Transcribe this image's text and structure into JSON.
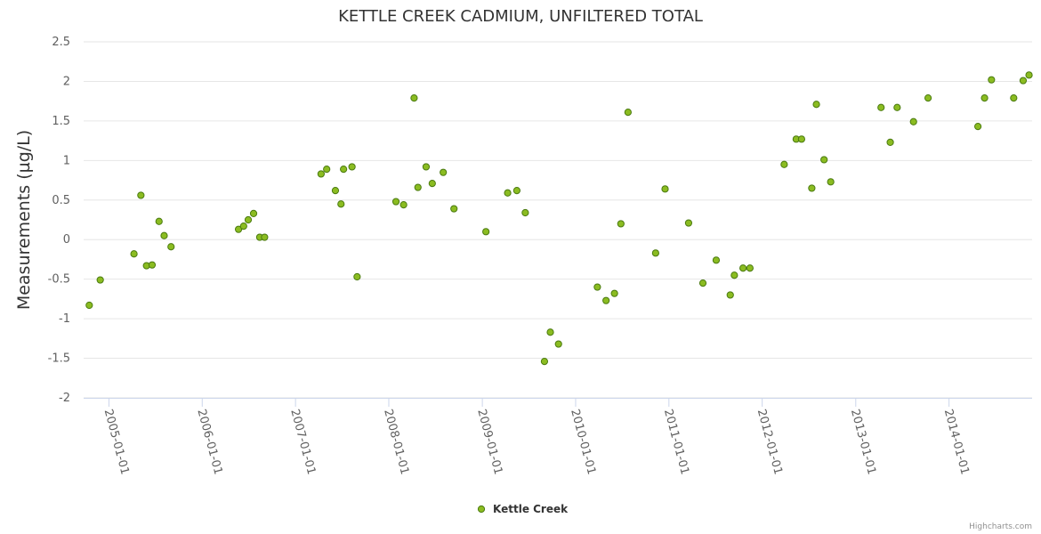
{
  "chart_data": {
    "type": "scatter",
    "title": "KETTLE CREEK CADMIUM, UNFILTERED TOTAL",
    "xlabel": "",
    "ylabel": "Measurements (µg/L)",
    "ylim": [
      -2,
      2.5
    ],
    "yticks": [
      "-2",
      "-1.5",
      "-1",
      "-0.5",
      "0",
      "0.5",
      "1",
      "1.5",
      "2",
      "2.5"
    ],
    "ytick_values": [
      -2,
      -1.5,
      -1,
      -0.5,
      0,
      0.5,
      1,
      1.5,
      2,
      2.5
    ],
    "xlim": [
      "2004-09-24",
      "2014-11-22"
    ],
    "xticks": [
      "2005-01-01",
      "2006-01-01",
      "2007-01-01",
      "2008-01-01",
      "2009-01-01",
      "2010-01-01",
      "2011-01-01",
      "2012-01-01",
      "2013-01-01",
      "2014-01-01"
    ],
    "grid": true,
    "legend": "bottom-center",
    "series": [
      {
        "name": "Kettle Creek",
        "color": "#8bbc21",
        "border_color": "#4a7a10",
        "points": [
          {
            "x": "2004-10-16",
            "y": -0.83
          },
          {
            "x": "2004-11-28",
            "y": -0.51
          },
          {
            "x": "2005-04-09",
            "y": -0.18
          },
          {
            "x": "2005-05-06",
            "y": 0.56
          },
          {
            "x": "2005-05-28",
            "y": -0.33
          },
          {
            "x": "2005-06-19",
            "y": -0.32
          },
          {
            "x": "2005-07-16",
            "y": 0.23
          },
          {
            "x": "2005-08-05",
            "y": 0.05
          },
          {
            "x": "2005-09-01",
            "y": -0.09
          },
          {
            "x": "2006-05-23",
            "y": 0.13
          },
          {
            "x": "2006-06-12",
            "y": 0.17
          },
          {
            "x": "2006-06-30",
            "y": 0.25
          },
          {
            "x": "2006-07-21",
            "y": 0.33
          },
          {
            "x": "2006-08-14",
            "y": 0.03
          },
          {
            "x": "2006-09-02",
            "y": 0.03
          },
          {
            "x": "2007-04-11",
            "y": 0.83
          },
          {
            "x": "2007-05-03",
            "y": 0.89
          },
          {
            "x": "2007-06-06",
            "y": 0.62
          },
          {
            "x": "2007-06-28",
            "y": 0.45
          },
          {
            "x": "2007-07-08",
            "y": 0.89
          },
          {
            "x": "2007-08-10",
            "y": 0.92
          },
          {
            "x": "2007-08-30",
            "y": -0.47
          },
          {
            "x": "2008-01-29",
            "y": 0.48
          },
          {
            "x": "2008-02-28",
            "y": 0.44
          },
          {
            "x": "2008-04-09",
            "y": 1.79
          },
          {
            "x": "2008-04-24",
            "y": 0.66
          },
          {
            "x": "2008-05-26",
            "y": 0.92
          },
          {
            "x": "2008-06-19",
            "y": 0.71
          },
          {
            "x": "2008-08-01",
            "y": 0.85
          },
          {
            "x": "2008-09-12",
            "y": 0.39
          },
          {
            "x": "2009-01-15",
            "y": 0.1
          },
          {
            "x": "2009-04-10",
            "y": 0.59
          },
          {
            "x": "2009-05-16",
            "y": 0.62
          },
          {
            "x": "2009-06-18",
            "y": 0.34
          },
          {
            "x": "2009-09-01",
            "y": -1.54
          },
          {
            "x": "2009-09-24",
            "y": -1.17
          },
          {
            "x": "2009-10-26",
            "y": -1.32
          },
          {
            "x": "2010-03-27",
            "y": -0.6
          },
          {
            "x": "2010-04-30",
            "y": -0.77
          },
          {
            "x": "2010-06-02",
            "y": -0.68
          },
          {
            "x": "2010-06-27",
            "y": 0.2
          },
          {
            "x": "2010-07-25",
            "y": 1.61
          },
          {
            "x": "2010-11-10",
            "y": -0.17
          },
          {
            "x": "2010-12-17",
            "y": 0.64
          },
          {
            "x": "2011-03-19",
            "y": 0.21
          },
          {
            "x": "2011-05-14",
            "y": -0.55
          },
          {
            "x": "2011-07-05",
            "y": -0.26
          },
          {
            "x": "2011-08-29",
            "y": -0.7
          },
          {
            "x": "2011-09-14",
            "y": -0.45
          },
          {
            "x": "2011-10-18",
            "y": -0.36
          },
          {
            "x": "2011-11-14",
            "y": -0.36
          },
          {
            "x": "2012-03-27",
            "y": 0.95
          },
          {
            "x": "2012-05-13",
            "y": 1.27
          },
          {
            "x": "2012-06-03",
            "y": 1.27
          },
          {
            "x": "2012-07-13",
            "y": 0.65
          },
          {
            "x": "2012-07-31",
            "y": 1.71
          },
          {
            "x": "2012-08-30",
            "y": 1.01
          },
          {
            "x": "2012-09-25",
            "y": 0.73
          },
          {
            "x": "2013-04-10",
            "y": 1.67
          },
          {
            "x": "2013-05-16",
            "y": 1.23
          },
          {
            "x": "2013-06-12",
            "y": 1.67
          },
          {
            "x": "2013-08-15",
            "y": 1.49
          },
          {
            "x": "2013-10-11",
            "y": 1.79
          },
          {
            "x": "2014-04-24",
            "y": 1.43
          },
          {
            "x": "2014-05-20",
            "y": 1.79
          },
          {
            "x": "2014-06-16",
            "y": 2.02
          },
          {
            "x": "2014-09-11",
            "y": 1.79
          },
          {
            "x": "2014-10-18",
            "y": 2.01
          },
          {
            "x": "2014-11-10",
            "y": 2.08
          }
        ]
      }
    ]
  },
  "credits": "Highcharts.com"
}
